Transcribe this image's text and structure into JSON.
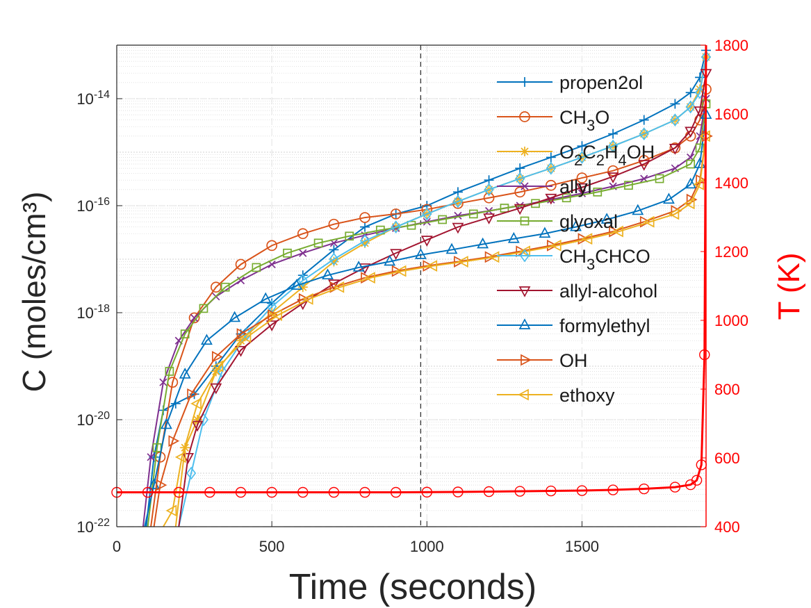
{
  "chart_data": {
    "type": "line",
    "xlabel": "Time (seconds)",
    "ylabel_left": "C (moles/cm³)",
    "ylabel_right": "T (K)",
    "xlim": [
      0,
      1900
    ],
    "ylim_left": [
      1e-22,
      1e-13
    ],
    "yscale_left": "log",
    "ylim_right": [
      400,
      1800
    ],
    "x_ticks": [
      "0",
      "500",
      "1000",
      "1500"
    ],
    "y_left_ticks": [
      {
        "base": "10",
        "exp": "-22",
        "value": 1e-22
      },
      {
        "base": "10",
        "exp": "-20",
        "value": 1e-20
      },
      {
        "base": "10",
        "exp": "-18",
        "value": 1e-18
      },
      {
        "base": "10",
        "exp": "-16",
        "value": 1e-16
      },
      {
        "base": "10",
        "exp": "-14",
        "value": 1e-14
      }
    ],
    "y_right_ticks": [
      "400",
      "600",
      "800",
      "1000",
      "1200",
      "1400",
      "1600",
      "1800"
    ],
    "grid": true,
    "vline_x": 980,
    "legend_position": "top-right",
    "series": [
      {
        "name": "propen2ol",
        "color": "#0072BD",
        "marker": "plus",
        "x": [
          95,
          120,
          150,
          190,
          250,
          320,
          400,
          500,
          600,
          700,
          800,
          900,
          1000,
          1100,
          1200,
          1300,
          1400,
          1500,
          1600,
          1700,
          1800,
          1850,
          1880,
          1900
        ],
        "y": [
          1e-22,
          2e-21,
          1.5e-20,
          2e-20,
          3e-20,
          1e-19,
          4e-19,
          1.5e-18,
          5e-18,
          1.5e-17,
          4e-17,
          7e-17,
          1e-16,
          1.8e-16,
          3e-16,
          5e-16,
          8e-16,
          1.3e-15,
          2.2e-15,
          4e-15,
          8e-15,
          1.3e-14,
          2.5e-14,
          8e-14
        ]
      },
      {
        "name": "CH_3O",
        "color": "#D95319",
        "marker": "circle",
        "x": [
          110,
          140,
          180,
          250,
          320,
          400,
          500,
          600,
          700,
          800,
          900,
          1000,
          1100,
          1200,
          1300,
          1400,
          1500,
          1600,
          1700,
          1800,
          1850,
          1880,
          1900
        ],
        "y": [
          1e-22,
          2e-21,
          5e-20,
          8e-19,
          3e-18,
          8e-18,
          1.8e-17,
          3e-17,
          4.5e-17,
          6e-17,
          7e-17,
          8.5e-17,
          1.1e-16,
          1.4e-16,
          1.8e-16,
          2.4e-16,
          3.3e-16,
          4.5e-16,
          7e-16,
          1.2e-15,
          2e-15,
          4e-15,
          1.5e-14
        ]
      },
      {
        "name": "O_2C_2H_4OH",
        "color": "#EDB120",
        "marker": "asterisk",
        "x": [
          190,
          220,
          260,
          320,
          400,
          500,
          600,
          700,
          800,
          900,
          1000,
          1100,
          1200,
          1300,
          1400,
          1500,
          1600,
          1700,
          1800,
          1850,
          1880,
          1900
        ],
        "y": [
          1e-22,
          3e-21,
          1e-20,
          8e-20,
          3e-19,
          1e-18,
          3e-18,
          9e-18,
          2e-17,
          4e-17,
          7e-17,
          1.2e-16,
          2e-16,
          3.2e-16,
          5e-16,
          8e-16,
          1.3e-15,
          2.2e-15,
          4e-15,
          7e-15,
          1.5e-14,
          6e-14
        ]
      },
      {
        "name": "allyl",
        "color": "#7E2F8E",
        "marker": "x",
        "x": [
          85,
          110,
          150,
          200,
          250,
          320,
          400,
          500,
          600,
          700,
          800,
          900,
          1000,
          1100,
          1200,
          1300,
          1400,
          1500,
          1600,
          1700,
          1800,
          1850,
          1880,
          1900
        ],
        "y": [
          1e-22,
          2e-21,
          5e-20,
          3e-19,
          8e-19,
          2e-18,
          4e-18,
          8e-18,
          1.3e-17,
          2e-17,
          2.8e-17,
          3.8e-17,
          5e-17,
          6.5e-17,
          8e-17,
          1e-16,
          1.3e-16,
          1.7e-16,
          2.3e-16,
          3.2e-16,
          5e-16,
          8e-16,
          2e-15,
          1e-14
        ]
      },
      {
        "name": "glyoxal",
        "color": "#77AC30",
        "marker": "square",
        "x": [
          100,
          130,
          170,
          220,
          280,
          350,
          450,
          550,
          650,
          750,
          850,
          950,
          1050,
          1150,
          1250,
          1350,
          1450,
          1550,
          1650,
          1750,
          1850,
          1880,
          1900
        ],
        "y": [
          1e-22,
          3e-21,
          8e-20,
          4e-19,
          1.2e-18,
          3e-18,
          7e-18,
          1.3e-17,
          2e-17,
          2.7e-17,
          3.5e-17,
          4.3e-17,
          5.5e-17,
          7e-17,
          9e-17,
          1.1e-16,
          1.4e-16,
          1.8e-16,
          2.4e-16,
          3.2e-16,
          6e-16,
          1.2e-15,
          8e-15
        ]
      },
      {
        "name": "CH_3CHCO",
        "color": "#4DBEEE",
        "marker": "diamond",
        "x": [
          200,
          240,
          280,
          340,
          420,
          500,
          600,
          700,
          800,
          900,
          1000,
          1100,
          1200,
          1300,
          1400,
          1500,
          1600,
          1700,
          1800,
          1850,
          1880,
          1900
        ],
        "y": [
          1e-22,
          1e-21,
          1e-20,
          8e-20,
          4e-19,
          1.3e-18,
          4e-18,
          1e-17,
          2.2e-17,
          4e-17,
          7e-17,
          1.2e-16,
          2e-16,
          3.2e-16,
          5e-16,
          8e-16,
          1.3e-15,
          2.2e-15,
          4e-15,
          7e-15,
          1.3e-14,
          6e-14
        ]
      },
      {
        "name": "allyl-alcohol",
        "color": "#A2142F",
        "marker": "triangle-down",
        "x": [
          200,
          230,
          260,
          320,
          400,
          500,
          600,
          700,
          800,
          900,
          1000,
          1100,
          1200,
          1300,
          1400,
          1500,
          1600,
          1700,
          1800,
          1850,
          1880,
          1900
        ],
        "y": [
          1e-22,
          2e-21,
          8e-21,
          4e-20,
          2e-19,
          6e-19,
          1.5e-18,
          3.5e-18,
          7e-18,
          1.3e-17,
          2.3e-17,
          4e-17,
          6e-17,
          9e-17,
          1.4e-16,
          2.2e-16,
          3.5e-16,
          6e-16,
          1.2e-15,
          2.5e-15,
          6e-15,
          3e-14
        ]
      },
      {
        "name": "formylethyl",
        "color": "#0072BD",
        "marker": "triangle-up",
        "x": [
          90,
          120,
          160,
          220,
          290,
          380,
          480,
          580,
          680,
          780,
          880,
          980,
          1080,
          1180,
          1280,
          1380,
          1480,
          1580,
          1680,
          1780,
          1850,
          1880,
          1900
        ],
        "y": [
          1e-22,
          6e-22,
          8e-21,
          7e-20,
          3e-19,
          8e-19,
          1.8e-18,
          3.2e-18,
          5e-18,
          7e-18,
          9e-18,
          1.2e-17,
          1.5e-17,
          1.9e-17,
          2.4e-17,
          3e-17,
          4e-17,
          5.5e-17,
          8e-17,
          1.3e-16,
          2.5e-16,
          6e-16,
          5e-15
        ]
      },
      {
        "name": "OH",
        "color": "#D95319",
        "marker": "triangle-right",
        "x": [
          120,
          140,
          180,
          240,
          320,
          400,
          500,
          600,
          700,
          800,
          900,
          1000,
          1100,
          1200,
          1300,
          1400,
          1500,
          1600,
          1700,
          1800,
          1850,
          1880,
          1900
        ],
        "y": [
          1e-22,
          6e-22,
          4e-21,
          3e-20,
          1.5e-19,
          4e-19,
          9e-19,
          1.8e-18,
          3e-18,
          4.5e-18,
          6e-18,
          7.5e-18,
          9e-18,
          1.1e-17,
          1.4e-17,
          1.8e-17,
          2.4e-17,
          3.3e-17,
          5e-17,
          8e-17,
          1.3e-16,
          3e-16,
          2e-15
        ]
      },
      {
        "name": "ethoxy",
        "color": "#EDB120",
        "marker": "triangle-left",
        "x": [
          150,
          180,
          210,
          260,
          330,
          420,
          520,
          620,
          720,
          820,
          920,
          1020,
          1120,
          1220,
          1320,
          1420,
          1520,
          1620,
          1720,
          1800,
          1850,
          1880,
          1900
        ],
        "y": [
          1e-22,
          2e-22,
          2e-21,
          2e-20,
          1e-19,
          3.5e-19,
          9e-19,
          1.8e-18,
          3e-18,
          4.5e-18,
          6e-18,
          7.5e-18,
          9e-18,
          1.1e-17,
          1.4e-17,
          1.8e-17,
          2.4e-17,
          3.3e-17,
          5e-17,
          7e-17,
          1.1e-16,
          2.5e-16,
          2e-15
        ]
      }
    ],
    "temperature_series": {
      "color": "#FF0000",
      "marker": "circle",
      "x": [
        0,
        100,
        200,
        300,
        400,
        500,
        600,
        700,
        800,
        900,
        1000,
        1100,
        1200,
        1300,
        1400,
        1500,
        1600,
        1700,
        1800,
        1850,
        1870,
        1885,
        1895,
        1900
      ],
      "y": [
        500,
        500,
        500,
        500,
        500,
        500,
        500,
        500,
        500,
        500,
        500.5,
        501,
        502,
        503,
        504,
        505,
        507,
        510,
        515,
        522,
        535,
        580,
        900,
        1800
      ]
    }
  }
}
